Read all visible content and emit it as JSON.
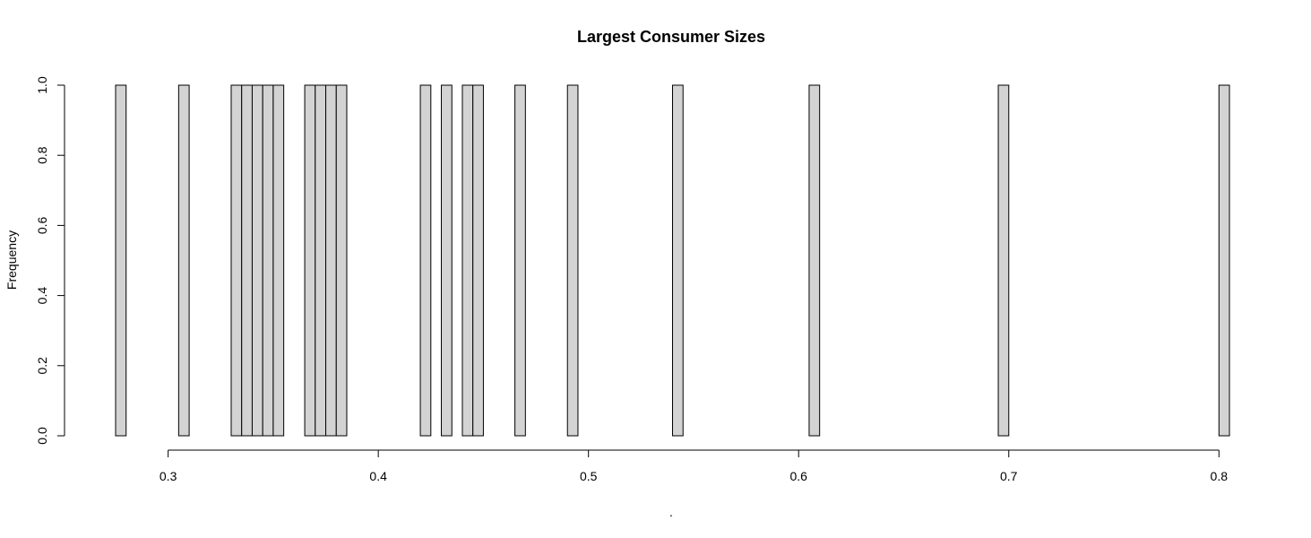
{
  "chart_data": {
    "type": "bar",
    "title": "Largest Consumer Sizes",
    "xlabel": ".",
    "ylabel": "Frequency",
    "xlim": [
      0.275,
      0.805
    ],
    "ylim": [
      0,
      1
    ],
    "bin_width": 0.005,
    "x_ticks": [
      "0.3",
      "0.4",
      "0.5",
      "0.6",
      "0.7",
      "0.8"
    ],
    "y_ticks": [
      "0.0",
      "0.2",
      "0.4",
      "0.6",
      "0.8",
      "1.0"
    ],
    "bins": [
      {
        "x0": 0.275,
        "x1": 0.28,
        "count": 1
      },
      {
        "x0": 0.305,
        "x1": 0.31,
        "count": 1
      },
      {
        "x0": 0.33,
        "x1": 0.335,
        "count": 1
      },
      {
        "x0": 0.335,
        "x1": 0.34,
        "count": 1
      },
      {
        "x0": 0.34,
        "x1": 0.345,
        "count": 1
      },
      {
        "x0": 0.345,
        "x1": 0.35,
        "count": 1
      },
      {
        "x0": 0.35,
        "x1": 0.355,
        "count": 1
      },
      {
        "x0": 0.365,
        "x1": 0.37,
        "count": 1
      },
      {
        "x0": 0.37,
        "x1": 0.375,
        "count": 1
      },
      {
        "x0": 0.375,
        "x1": 0.38,
        "count": 1
      },
      {
        "x0": 0.38,
        "x1": 0.385,
        "count": 1
      },
      {
        "x0": 0.42,
        "x1": 0.425,
        "count": 1
      },
      {
        "x0": 0.43,
        "x1": 0.435,
        "count": 1
      },
      {
        "x0": 0.44,
        "x1": 0.445,
        "count": 1
      },
      {
        "x0": 0.445,
        "x1": 0.45,
        "count": 1
      },
      {
        "x0": 0.465,
        "x1": 0.47,
        "count": 1
      },
      {
        "x0": 0.49,
        "x1": 0.495,
        "count": 1
      },
      {
        "x0": 0.54,
        "x1": 0.545,
        "count": 1
      },
      {
        "x0": 0.605,
        "x1": 0.61,
        "count": 1
      },
      {
        "x0": 0.695,
        "x1": 0.7,
        "count": 1
      },
      {
        "x0": 0.8,
        "x1": 0.805,
        "count": 1
      }
    ],
    "bar_color": "#d3d3d3",
    "grid": false,
    "legend": "none"
  }
}
